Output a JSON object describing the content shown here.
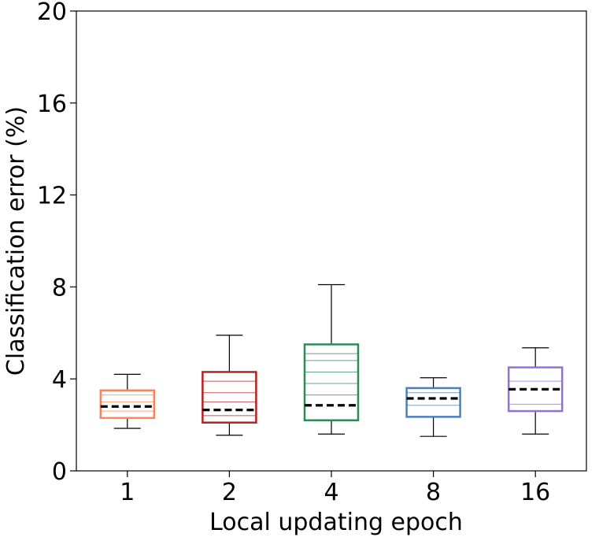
{
  "chart_data": {
    "type": "box",
    "xlabel": "Local updating epoch",
    "ylabel": "Classification error (%)",
    "ylim": [
      0,
      20
    ],
    "yticks": [
      0,
      4,
      8,
      12,
      16,
      20
    ],
    "categories": [
      "1",
      "2",
      "4",
      "8",
      "16"
    ],
    "boxes": [
      {
        "category": "1",
        "color": "#f4885a",
        "min": 1.85,
        "q1": 2.3,
        "median": 2.8,
        "mean": 2.8,
        "q3": 3.5,
        "max": 4.2,
        "hatch_lines": [
          2.6,
          3.0,
          3.3
        ]
      },
      {
        "category": "2",
        "color": "#b22222",
        "min": 1.55,
        "q1": 2.1,
        "median": 2.65,
        "mean": 2.65,
        "q3": 4.3,
        "max": 5.9,
        "hatch_lines": [
          2.4,
          3.0,
          3.4,
          3.9
        ]
      },
      {
        "category": "4",
        "color": "#2e8b57",
        "min": 1.6,
        "q1": 2.2,
        "median": 2.85,
        "mean": 2.85,
        "q3": 5.5,
        "max": 8.1,
        "hatch_lines": [
          3.3,
          3.8,
          4.3,
          4.8,
          5.1
        ]
      },
      {
        "category": "8",
        "color": "#4a7fbf",
        "min": 1.5,
        "q1": 2.35,
        "median": 3.15,
        "mean": 3.15,
        "q3": 3.6,
        "max": 4.05,
        "hatch_lines": [
          2.85,
          3.4
        ]
      },
      {
        "category": "16",
        "color": "#9370db",
        "min": 1.6,
        "q1": 2.6,
        "median": 3.55,
        "mean": 3.55,
        "q3": 4.5,
        "max": 5.35,
        "hatch_lines": [
          2.9,
          3.9
        ]
      }
    ],
    "mean_line_style": "dashed-black",
    "grid": false,
    "legend": "none"
  }
}
